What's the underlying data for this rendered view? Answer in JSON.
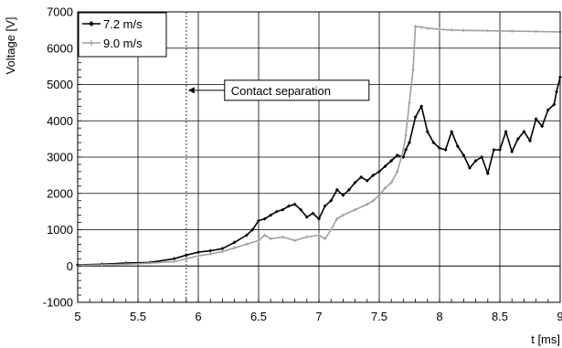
{
  "chart_data": {
    "type": "line",
    "title": "",
    "xlabel": "t [ms]",
    "ylabel": "Voltage [V]",
    "xlim": [
      5,
      9
    ],
    "ylim": [
      -1000,
      7000
    ],
    "x_ticks": [
      5,
      5.5,
      6,
      6.5,
      7,
      7.5,
      8,
      8.5,
      9
    ],
    "x_tick_labels": [
      "5",
      "5.5",
      "6",
      "6.5",
      "7",
      "7.5",
      "8",
      "8.5",
      "9"
    ],
    "y_ticks": [
      -1000,
      0,
      1000,
      2000,
      3000,
      4000,
      5000,
      6000,
      7000
    ],
    "y_tick_labels": [
      "-1000",
      "0",
      "1000",
      "2000",
      "3000",
      "4000",
      "5000",
      "6000",
      "7000"
    ],
    "grid": true,
    "legend_position": "top-left",
    "series": [
      {
        "name": "7.2 m/s",
        "color": "#000000",
        "x": [
          5.0,
          5.2,
          5.4,
          5.6,
          5.8,
          5.9,
          6.0,
          6.1,
          6.2,
          6.3,
          6.4,
          6.45,
          6.5,
          6.55,
          6.6,
          6.65,
          6.7,
          6.75,
          6.8,
          6.85,
          6.9,
          6.95,
          7.0,
          7.05,
          7.1,
          7.15,
          7.2,
          7.25,
          7.3,
          7.35,
          7.4,
          7.45,
          7.5,
          7.55,
          7.6,
          7.65,
          7.7,
          7.72,
          7.75,
          7.8,
          7.85,
          7.9,
          7.95,
          8.0,
          8.05,
          8.1,
          8.15,
          8.2,
          8.25,
          8.3,
          8.35,
          8.4,
          8.45,
          8.5,
          8.55,
          8.6,
          8.65,
          8.7,
          8.75,
          8.8,
          8.85,
          8.9,
          8.95,
          8.97,
          9.0
        ],
        "y": [
          30,
          50,
          80,
          100,
          200,
          300,
          380,
          420,
          480,
          650,
          850,
          1000,
          1250,
          1300,
          1400,
          1500,
          1550,
          1650,
          1700,
          1550,
          1350,
          1450,
          1300,
          1650,
          1800,
          2100,
          1950,
          2100,
          2300,
          2450,
          2350,
          2500,
          2600,
          2750,
          2900,
          3050,
          3000,
          3200,
          3400,
          4100,
          4400,
          3700,
          3400,
          3250,
          3200,
          3700,
          3300,
          3050,
          2700,
          2900,
          3000,
          2550,
          3200,
          3200,
          3700,
          3150,
          3500,
          3700,
          3450,
          4050,
          3850,
          4300,
          4450,
          4800,
          5200
        ]
      },
      {
        "name": "9.0 m/s",
        "color": "#a0a0a0",
        "x": [
          5.0,
          5.2,
          5.4,
          5.6,
          5.8,
          5.9,
          6.0,
          6.1,
          6.2,
          6.3,
          6.4,
          6.5,
          6.55,
          6.6,
          6.7,
          6.8,
          6.9,
          7.0,
          7.05,
          7.1,
          7.15,
          7.2,
          7.3,
          7.4,
          7.45,
          7.5,
          7.55,
          7.6,
          7.65,
          7.7,
          7.72,
          7.75,
          7.78,
          7.8,
          7.85,
          7.9,
          8.0,
          8.1,
          8.2,
          8.4,
          8.6,
          8.8,
          9.0
        ],
        "y": [
          20,
          30,
          50,
          80,
          120,
          200,
          280,
          330,
          400,
          500,
          600,
          700,
          850,
          750,
          800,
          700,
          800,
          850,
          750,
          1000,
          1300,
          1400,
          1550,
          1700,
          1800,
          1950,
          2150,
          2300,
          2600,
          3200,
          3600,
          4500,
          5400,
          6600,
          6580,
          6550,
          6520,
          6500,
          6490,
          6480,
          6470,
          6460,
          6450
        ]
      }
    ],
    "annotations": [
      {
        "text": "Contact separation",
        "x": 5.9
      }
    ]
  }
}
